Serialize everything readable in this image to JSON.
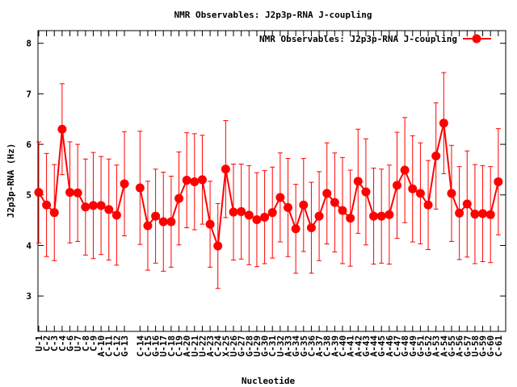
{
  "chart_data": {
    "type": "line",
    "title": "NMR Observables: J2p3p-RNA J-coupling",
    "xlabel": "Nucleotide",
    "ylabel": "J2p3p-RNA (Hz)",
    "ylim": [
      2.3,
      8.25
    ],
    "xlim": [
      -0.1,
      59.95
    ],
    "yticks": [
      3,
      4,
      5,
      6,
      7,
      8
    ],
    "grid": false,
    "legend": {
      "placement": "top-right",
      "label": "NMR Observables: J2p3p-RNA J-coupling"
    },
    "color": "#ff0000",
    "categories": [
      "U-1",
      "C-2",
      "C-3",
      "C-4",
      "G-6",
      "U-7",
      "C-8",
      "C-9",
      "A-10",
      "C-11",
      "C-12",
      "G-13",
      "C-14",
      "C-15",
      "G-16",
      "U-17",
      "C-18",
      "C-19",
      "A-20",
      "U-21",
      "U-22",
      "A-23",
      "C-24",
      "X-25",
      "U-26",
      "G-27",
      "G-28",
      "U-29",
      "G-30",
      "C-31",
      "U-32",
      "A-33",
      "G-34",
      "G-35",
      "C-36",
      "A-37",
      "C-38",
      "A-39",
      "C-40",
      "A-41",
      "A-42",
      "G-43",
      "A-44",
      "G-45",
      "A-46",
      "C-47",
      "G-48",
      "G-49",
      "G-51",
      "G-52",
      "A-53",
      "A-54",
      "G-55",
      "A-56",
      "G-57",
      "U-58",
      "G-59",
      "G-60",
      "C-61"
    ],
    "x": [
      0,
      1,
      2,
      3,
      4,
      5,
      6,
      7,
      8,
      9,
      10,
      11,
      13,
      14,
      15,
      16,
      17,
      18,
      19,
      20,
      21,
      22,
      23,
      24,
      25,
      26,
      27,
      28,
      29,
      30,
      31,
      32,
      33,
      34,
      35,
      36,
      37,
      38,
      39,
      40,
      41,
      42,
      43,
      44,
      45,
      46,
      47,
      48,
      49,
      50,
      51,
      52,
      53,
      54,
      55,
      56,
      57,
      58,
      59
    ],
    "segments": [
      [
        0,
        11
      ],
      [
        12,
        58
      ]
    ],
    "values": [
      5.05,
      4.8,
      4.65,
      6.3,
      5.05,
      5.04,
      4.76,
      4.79,
      4.79,
      4.71,
      4.6,
      5.22,
      5.14,
      4.39,
      4.58,
      4.47,
      4.47,
      4.93,
      5.29,
      5.26,
      5.3,
      4.42,
      3.99,
      5.51,
      4.66,
      4.67,
      4.6,
      4.51,
      4.56,
      4.65,
      4.95,
      4.75,
      4.33,
      4.8,
      4.35,
      4.58,
      5.03,
      4.85,
      4.69,
      4.54,
      5.27,
      5.06,
      4.58,
      4.58,
      4.61,
      5.19,
      5.49,
      5.12,
      5.03,
      4.8,
      5.77,
      6.42,
      5.03,
      4.64,
      4.82,
      4.62,
      4.63,
      4.61,
      5.26
    ],
    "errors": [
      1.0,
      1.02,
      0.95,
      0.9,
      1.0,
      0.96,
      0.95,
      1.05,
      0.97,
      1.0,
      0.99,
      1.03,
      1.12,
      0.88,
      0.93,
      0.98,
      0.9,
      0.92,
      0.94,
      0.95,
      0.88,
      0.85,
      0.84,
      0.96,
      0.95,
      0.94,
      0.98,
      0.93,
      0.92,
      0.9,
      0.88,
      0.97,
      0.88,
      0.92,
      0.9,
      0.88,
      1.0,
      0.98,
      1.05,
      0.95,
      1.03,
      1.05,
      0.95,
      0.93,
      0.98,
      1.05,
      1.04,
      1.05,
      1.0,
      0.88,
      1.05,
      1.0,
      0.95,
      0.92,
      1.05,
      0.98,
      0.95,
      0.95,
      1.05
    ]
  }
}
